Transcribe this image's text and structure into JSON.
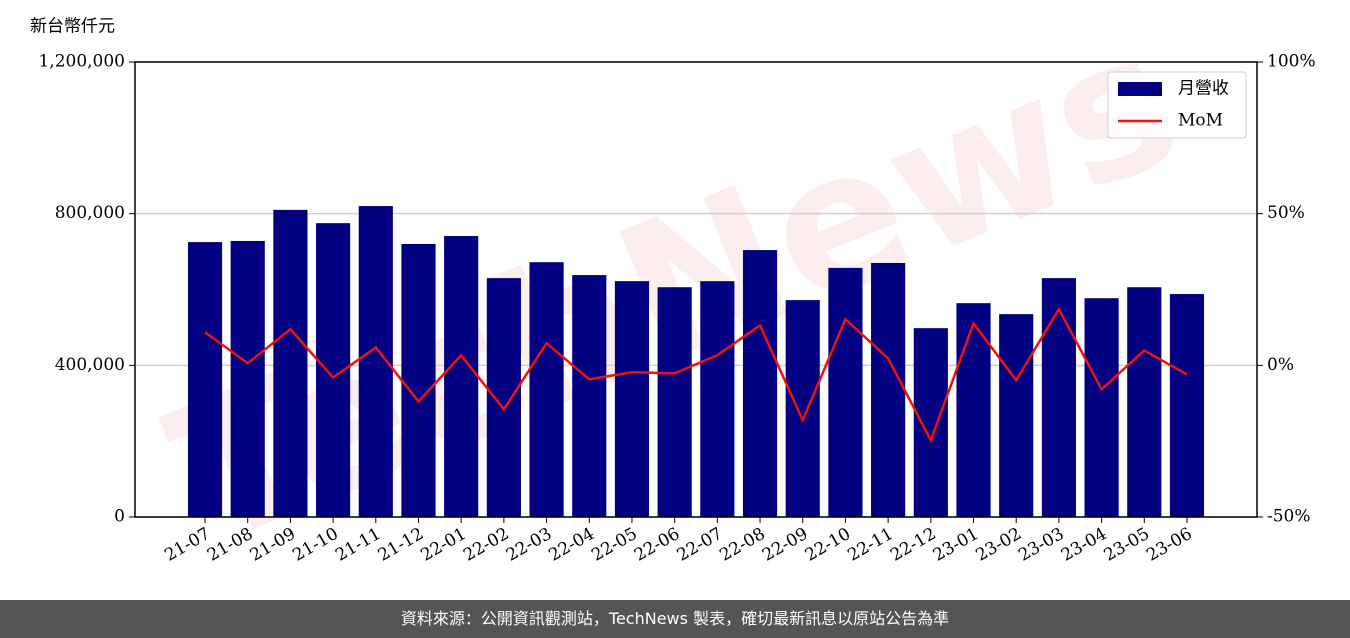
{
  "chart_data": {
    "type": "bar-line",
    "y_label": "新台幣仟元",
    "watermark": "TechNews",
    "categories": [
      "21-07",
      "21-08",
      "21-09",
      "21-10",
      "21-11",
      "21-12",
      "22-01",
      "22-02",
      "22-03",
      "22-04",
      "22-05",
      "22-06",
      "22-07",
      "22-08",
      "22-09",
      "22-10",
      "22-11",
      "22-12",
      "23-01",
      "23-02",
      "23-03",
      "23-04",
      "23-05",
      "23-06"
    ],
    "series": [
      {
        "name": "月營收",
        "type": "bar",
        "color": "#000080",
        "axis": "y",
        "values": [
          725000,
          728000,
          810000,
          775000,
          820000,
          720000,
          741000,
          630000,
          672000,
          638000,
          622000,
          606000,
          622000,
          704000,
          572000,
          657000,
          670000,
          498000,
          564000,
          535000,
          630000,
          577000,
          606000,
          588000
        ]
      },
      {
        "name": "MoM",
        "type": "line",
        "color": "#ee1111",
        "axis": "y2",
        "values": [
          10.9,
          0.7,
          11.9,
          -4.0,
          5.9,
          -11.9,
          3.3,
          -14.5,
          7.3,
          -4.6,
          -2.3,
          -2.6,
          3.3,
          13.2,
          -18.1,
          15.2,
          2.3,
          -24.7,
          13.8,
          -4.9,
          18.5,
          -7.9,
          4.9,
          -3.0
        ]
      }
    ],
    "ylim": [
      0,
      1200000
    ],
    "yticks": [
      0,
      {
        "value": 400000,
        "label": "400,000"
      },
      {
        "value": 800000,
        "label": "800,000"
      },
      {
        "value": 1200000,
        "label": "1,200,000"
      }
    ],
    "y2lim": [
      -50,
      100
    ],
    "y2ticks": [
      {
        "value": -50,
        "label": "-50%"
      },
      {
        "value": 0,
        "label": "0%"
      },
      {
        "value": 50,
        "label": "50%"
      },
      {
        "value": 100,
        "label": "100%"
      }
    ],
    "grid": true,
    "legend": "upper right"
  },
  "footer": "資料來源：公開資訊觀測站，TechNews 製表，確切最新訊息以原站公告為準"
}
